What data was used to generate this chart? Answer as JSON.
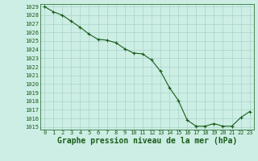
{
  "x": [
    0,
    1,
    2,
    3,
    4,
    5,
    6,
    7,
    8,
    9,
    10,
    11,
    12,
    13,
    14,
    15,
    16,
    17,
    18,
    19,
    20,
    21,
    22,
    23
  ],
  "y": [
    1029.0,
    1028.4,
    1028.0,
    1027.3,
    1026.6,
    1025.8,
    1025.2,
    1025.1,
    1024.8,
    1024.1,
    1023.6,
    1023.5,
    1022.8,
    1021.5,
    1019.6,
    1018.1,
    1015.8,
    1015.1,
    1015.1,
    1015.4,
    1015.1,
    1015.1,
    1016.1,
    1016.8
  ],
  "ylim_min": 1015,
  "ylim_max": 1029,
  "xlim_min": 0,
  "xlim_max": 23,
  "yticks": [
    1015,
    1016,
    1017,
    1018,
    1019,
    1020,
    1021,
    1022,
    1023,
    1024,
    1025,
    1026,
    1027,
    1028,
    1029
  ],
  "xticks": [
    0,
    1,
    2,
    3,
    4,
    5,
    6,
    7,
    8,
    9,
    10,
    11,
    12,
    13,
    14,
    15,
    16,
    17,
    18,
    19,
    20,
    21,
    22,
    23
  ],
  "line_color": "#1a5c1a",
  "marker": "+",
  "bg_color": "#cceee4",
  "grid_color": "#aad4c8",
  "text_color": "#1a5c1a",
  "xlabel": "Graphe pression niveau de la mer (hPa)",
  "tick_fontsize": 5.0,
  "label_fontsize": 7.0,
  "linewidth": 0.8,
  "markersize": 3.0,
  "markeredgewidth": 0.8
}
